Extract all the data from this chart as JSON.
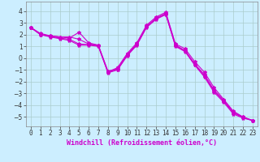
{
  "background_color": "#cceeff",
  "grid_color": "#aacccc",
  "line_color": "#cc00cc",
  "marker": "*",
  "markersize": 3,
  "linewidth": 0.8,
  "xlabel": "Windchill (Refroidissement éolien,°C)",
  "xlabel_fontsize": 6,
  "tick_fontsize": 5.5,
  "xlim": [
    -0.5,
    23.5
  ],
  "ylim": [
    -5.8,
    4.8
  ],
  "yticks": [
    -5,
    -4,
    -3,
    -2,
    -1,
    0,
    1,
    2,
    3,
    4
  ],
  "xticks": [
    0,
    1,
    2,
    3,
    4,
    5,
    6,
    7,
    8,
    9,
    10,
    11,
    12,
    13,
    14,
    15,
    16,
    17,
    18,
    19,
    20,
    21,
    22,
    23
  ],
  "series": [
    [
      2.6,
      2.1,
      1.9,
      1.8,
      1.7,
      2.2,
      1.3,
      1.1,
      -1.2,
      -0.8,
      0.4,
      1.3,
      2.8,
      3.5,
      3.9,
      1.2,
      0.8,
      -0.3,
      -1.2,
      -2.5,
      -3.5,
      -4.5,
      -5.0,
      -5.3
    ],
    [
      2.6,
      2.0,
      1.9,
      1.8,
      1.8,
      1.6,
      1.2,
      1.1,
      -1.1,
      -0.9,
      0.3,
      1.2,
      2.7,
      3.4,
      3.8,
      1.1,
      0.65,
      -0.5,
      -1.4,
      -2.7,
      -3.6,
      -4.6,
      -5.0,
      -5.3
    ],
    [
      2.6,
      2.0,
      1.85,
      1.7,
      1.6,
      1.2,
      1.15,
      1.05,
      -1.2,
      -0.95,
      0.25,
      1.15,
      2.65,
      3.35,
      3.75,
      1.05,
      0.6,
      -0.55,
      -1.5,
      -2.8,
      -3.65,
      -4.65,
      -5.05,
      -5.3
    ],
    [
      2.6,
      2.0,
      1.8,
      1.65,
      1.5,
      1.1,
      1.1,
      1.0,
      -1.25,
      -1.0,
      0.2,
      1.1,
      2.6,
      3.3,
      3.7,
      1.0,
      0.55,
      -0.6,
      -1.6,
      -2.9,
      -3.75,
      -4.75,
      -5.1,
      -5.3
    ]
  ]
}
